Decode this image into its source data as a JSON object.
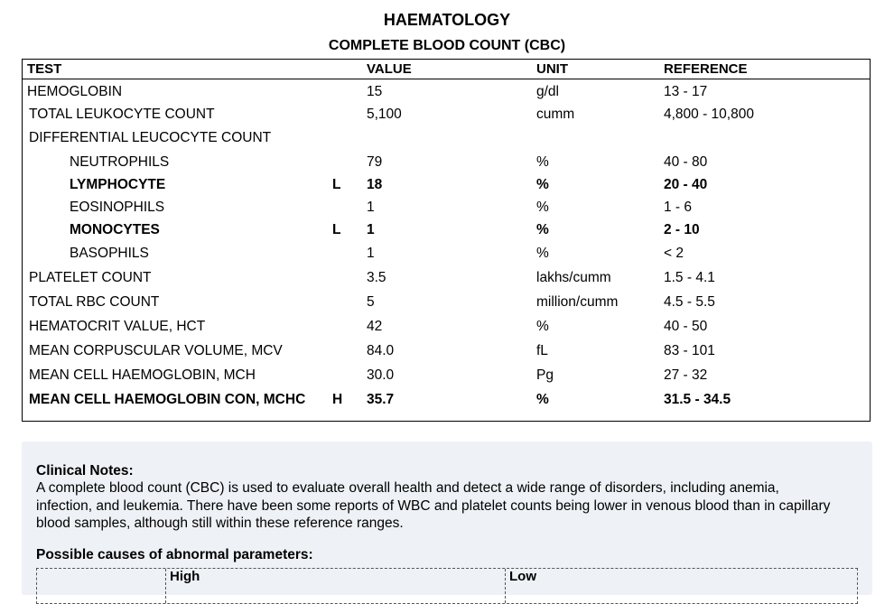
{
  "header": {
    "title": "HAEMATOLOGY",
    "subtitle": "COMPLETE BLOOD COUNT (CBC)"
  },
  "table": {
    "columns": {
      "test": "TEST",
      "value": "VALUE",
      "unit": "UNIT",
      "reference": "REFERENCE"
    },
    "rows": [
      {
        "test": "HEMOGLOBIN",
        "flag": "",
        "value": "15",
        "unit": "g/dl",
        "reference": "13 - 17"
      },
      {
        "test": "TOTAL LEUKOCYTE COUNT",
        "flag": "",
        "value": "5,100",
        "unit": "cumm",
        "reference": "4,800 - 10,800"
      },
      {
        "test": "DIFFERENTIAL LEUCOCYTE COUNT",
        "flag": "",
        "value": "",
        "unit": "",
        "reference": ""
      },
      {
        "test": "NEUTROPHILS",
        "flag": "",
        "value": "79",
        "unit": "%",
        "reference": "40 - 80"
      },
      {
        "test": "LYMPHOCYTE",
        "flag": "L",
        "value": "18",
        "unit": "%",
        "reference": "20 - 40"
      },
      {
        "test": "EOSINOPHILS",
        "flag": "",
        "value": "1",
        "unit": "%",
        "reference": "1 - 6"
      },
      {
        "test": "MONOCYTES",
        "flag": "L",
        "value": "1",
        "unit": "%",
        "reference": "2 - 10"
      },
      {
        "test": "BASOPHILS",
        "flag": "",
        "value": "1",
        "unit": "%",
        "reference": "< 2"
      },
      {
        "test": "PLATELET COUNT",
        "flag": "",
        "value": "3.5",
        "unit": "lakhs/cumm",
        "reference": "1.5 - 4.1"
      },
      {
        "test": "TOTAL RBC COUNT",
        "flag": "",
        "value": "5",
        "unit": "million/cumm",
        "reference": "4.5 - 5.5"
      },
      {
        "test": "HEMATOCRIT VALUE, HCT",
        "flag": "",
        "value": "42",
        "unit": "%",
        "reference": "40 - 50"
      },
      {
        "test": "MEAN CORPUSCULAR VOLUME, MCV",
        "flag": "",
        "value": "84.0",
        "unit": "fL",
        "reference": "83 - 101"
      },
      {
        "test": "MEAN CELL HAEMOGLOBIN, MCH",
        "flag": "",
        "value": "30.0",
        "unit": "Pg",
        "reference": "27 - 32"
      },
      {
        "test": "MEAN CELL HAEMOGLOBIN CON, MCHC",
        "flag": "H",
        "value": "35.7",
        "unit": "%",
        "reference": "31.5 - 34.5"
      }
    ]
  },
  "notes": {
    "heading": "Clinical Notes:",
    "paragraph": "A complete blood count (CBC) is used to evaluate overall health and detect a wide range of disorders, including anemia, infection, and leukemia. There have been some reports of WBC and platelet counts being lower in venous blood than in capillary blood samples, although still within these reference ranges.",
    "causes_heading": "Possible causes of abnormal parameters:",
    "causes_high": "High",
    "causes_low": "Low"
  }
}
